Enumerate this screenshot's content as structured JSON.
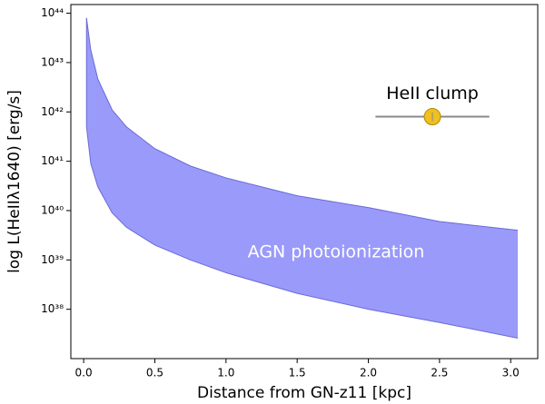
{
  "chart_data": {
    "type": "fill_between",
    "x_label": "Distance from GN-z11 [kpc]",
    "y_label": "log L(HeIIλ1640) [erg/s]",
    "x": [
      0.02,
      0.05,
      0.1,
      0.2,
      0.3,
      0.5,
      0.75,
      1.0,
      1.5,
      2.0,
      2.5,
      3.05
    ],
    "upper": [
      8e+43,
      1.8e+43,
      4.6e+42,
      1.1e+42,
      5e+41,
      1.8e+41,
      8e+40,
      4.6e+40,
      2e+40,
      1.15e+40,
      6e+39,
      4e+39
    ],
    "lower": [
      5e+41,
      9e+40,
      3e+40,
      9e+39,
      4.6e+39,
      2e+39,
      1e+39,
      5.5e+38,
      2.1e+38,
      1e+38,
      5.4e+37,
      2.6e+37
    ],
    "color": "#9a9afa",
    "edge_color": "#6a6ad8",
    "region_label": "AGN photoionization",
    "clump": {
      "label": "HeII clump",
      "x": 2.45,
      "y": 8e+41,
      "xerr": 0.4,
      "color": "#f0c020"
    },
    "xlim": [
      -0.09,
      3.19
    ],
    "ylim": [
      1e+37,
      1.5e+44
    ],
    "ylog": true,
    "xticks": [
      {
        "value": 0,
        "label": "0.0"
      },
      0.5,
      {
        "value": 1,
        "label": "1.0"
      },
      1.5,
      {
        "value": 2,
        "label": "2.0"
      },
      2.5,
      {
        "value": 3,
        "label": "3.0"
      }
    ],
    "yticks": [
      {
        "value": 1e+38,
        "label": "10³⁸"
      },
      {
        "value": 1e+39,
        "label": "10³⁹"
      },
      {
        "value": 1e+40,
        "label": "10⁴⁰"
      },
      {
        "value": 1e+41,
        "label": "10⁴¹"
      },
      {
        "value": 1e+42,
        "label": "10⁴²"
      },
      {
        "value": 1e+43,
        "label": "10⁴³"
      },
      {
        "value": 1e+44,
        "label": "10⁴⁴"
      }
    ]
  }
}
